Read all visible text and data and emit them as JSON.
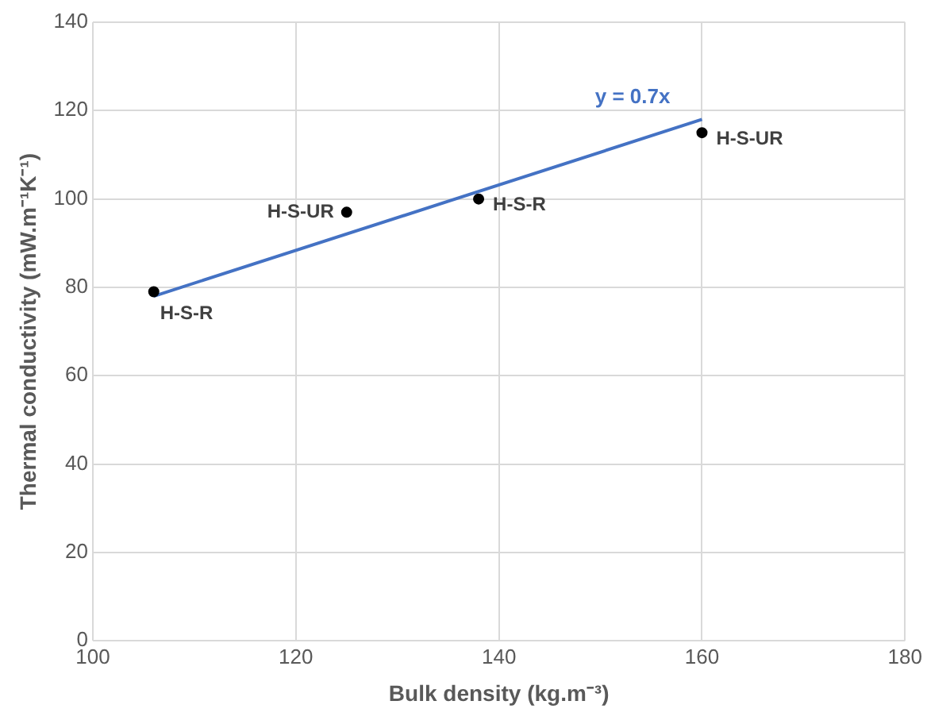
{
  "chart_data": {
    "type": "scatter",
    "xlabel": "Bulk density (kg.m⁻³)",
    "ylabel": "Thermal conductivity (mW.m⁻¹K⁻¹)",
    "xlim": [
      100,
      180
    ],
    "xticks": [
      100,
      120,
      140,
      160,
      180
    ],
    "ylim": [
      0,
      140
    ],
    "yticks": [
      0,
      20,
      40,
      60,
      80,
      100,
      120,
      140
    ],
    "grid": true,
    "legend": false,
    "marker": "circle",
    "series": [
      {
        "color": "#000000",
        "x": [
          106,
          125,
          138,
          160
        ],
        "values": [
          79,
          97,
          100,
          115
        ]
      },
      {
        "type": "line",
        "name": "y = 0.7x",
        "color": "#4472c4",
        "x": [
          106,
          160
        ],
        "values": [
          78,
          118
        ],
        "marker": "none"
      }
    ],
    "annotations": [
      {
        "text": "H-S-R",
        "x": 106,
        "y": 79
      },
      {
        "text": "H-S-UR",
        "x": 125,
        "y": 97
      },
      {
        "text": "H-S-R",
        "x": 138,
        "y": 100
      },
      {
        "text": "H-S-UR",
        "x": 160,
        "y": 115
      }
    ]
  }
}
